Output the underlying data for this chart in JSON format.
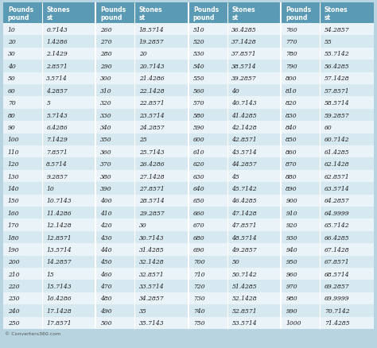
{
  "header_bg": "#5b9ab5",
  "header_text_color": "#ffffff",
  "row_bg_light": "#eaf3f7",
  "row_bg_dark": "#d6e8f0",
  "text_color": "#1a1a1a",
  "outer_bg": "#b8d4e0",
  "col1_header_line1": "Pounds",
  "col1_header_line2": "pound",
  "col2_header_line1": "Stones",
  "col2_header_line2": "st",
  "footer": "© Converters360.com",
  "columns": [
    [
      10,
      20,
      30,
      40,
      50,
      60,
      70,
      80,
      90,
      100,
      110,
      120,
      130,
      140,
      150,
      160,
      170,
      180,
      190,
      200,
      210,
      220,
      230,
      240,
      250
    ],
    [
      "0.7143",
      "1.4286",
      "2.1429",
      "2.8571",
      "3.5714",
      "4.2857",
      "5",
      "5.7143",
      "6.4286",
      "7.1429",
      "7.8571",
      "8.5714",
      "9.2857",
      "10",
      "10.7143",
      "11.4286",
      "12.1428",
      "12.8571",
      "13.5714",
      "14.2857",
      "15",
      "15.7143",
      "16.4286",
      "17.1428",
      "17.8571"
    ],
    [
      260,
      270,
      280,
      290,
      300,
      310,
      320,
      330,
      340,
      350,
      360,
      370,
      380,
      390,
      400,
      410,
      420,
      430,
      440,
      450,
      460,
      470,
      480,
      490,
      500
    ],
    [
      "18.5714",
      "19.2857",
      "20",
      "20.7143",
      "21.4286",
      "22.1428",
      "22.8571",
      "23.5714",
      "24.2857",
      "25",
      "25.7143",
      "26.4286",
      "27.1428",
      "27.8571",
      "28.5714",
      "29.2857",
      "30",
      "30.7143",
      "31.4285",
      "32.1428",
      "32.8571",
      "33.5714",
      "34.2857",
      "35",
      "35.7143"
    ],
    [
      510,
      520,
      530,
      540,
      550,
      560,
      570,
      580,
      590,
      600,
      610,
      620,
      630,
      640,
      650,
      660,
      670,
      680,
      690,
      700,
      710,
      720,
      730,
      740,
      750
    ],
    [
      "36.4285",
      "37.1428",
      "37.8571",
      "38.5714",
      "39.2857",
      "40",
      "40.7143",
      "41.4285",
      "42.1428",
      "42.8571",
      "43.5714",
      "44.2857",
      "45",
      "45.7142",
      "46.4285",
      "47.1428",
      "47.8571",
      "48.5714",
      "49.2857",
      "50",
      "50.7142",
      "51.4285",
      "52.1428",
      "52.8571",
      "53.5714"
    ],
    [
      760,
      770,
      780,
      790,
      800,
      810,
      820,
      830,
      840,
      850,
      860,
      870,
      880,
      890,
      900,
      910,
      920,
      930,
      940,
      950,
      960,
      970,
      980,
      990,
      1000
    ],
    [
      "54.2857",
      "55",
      "55.7142",
      "56.4285",
      "57.1428",
      "57.8571",
      "58.5714",
      "59.2857",
      "60",
      "60.7142",
      "61.4285",
      "62.1428",
      "62.8571",
      "63.5714",
      "64.2857",
      "64.9999",
      "65.7142",
      "66.4285",
      "67.1428",
      "67.8571",
      "68.5714",
      "69.2857",
      "69.9999",
      "70.7142",
      "71.4285"
    ]
  ]
}
